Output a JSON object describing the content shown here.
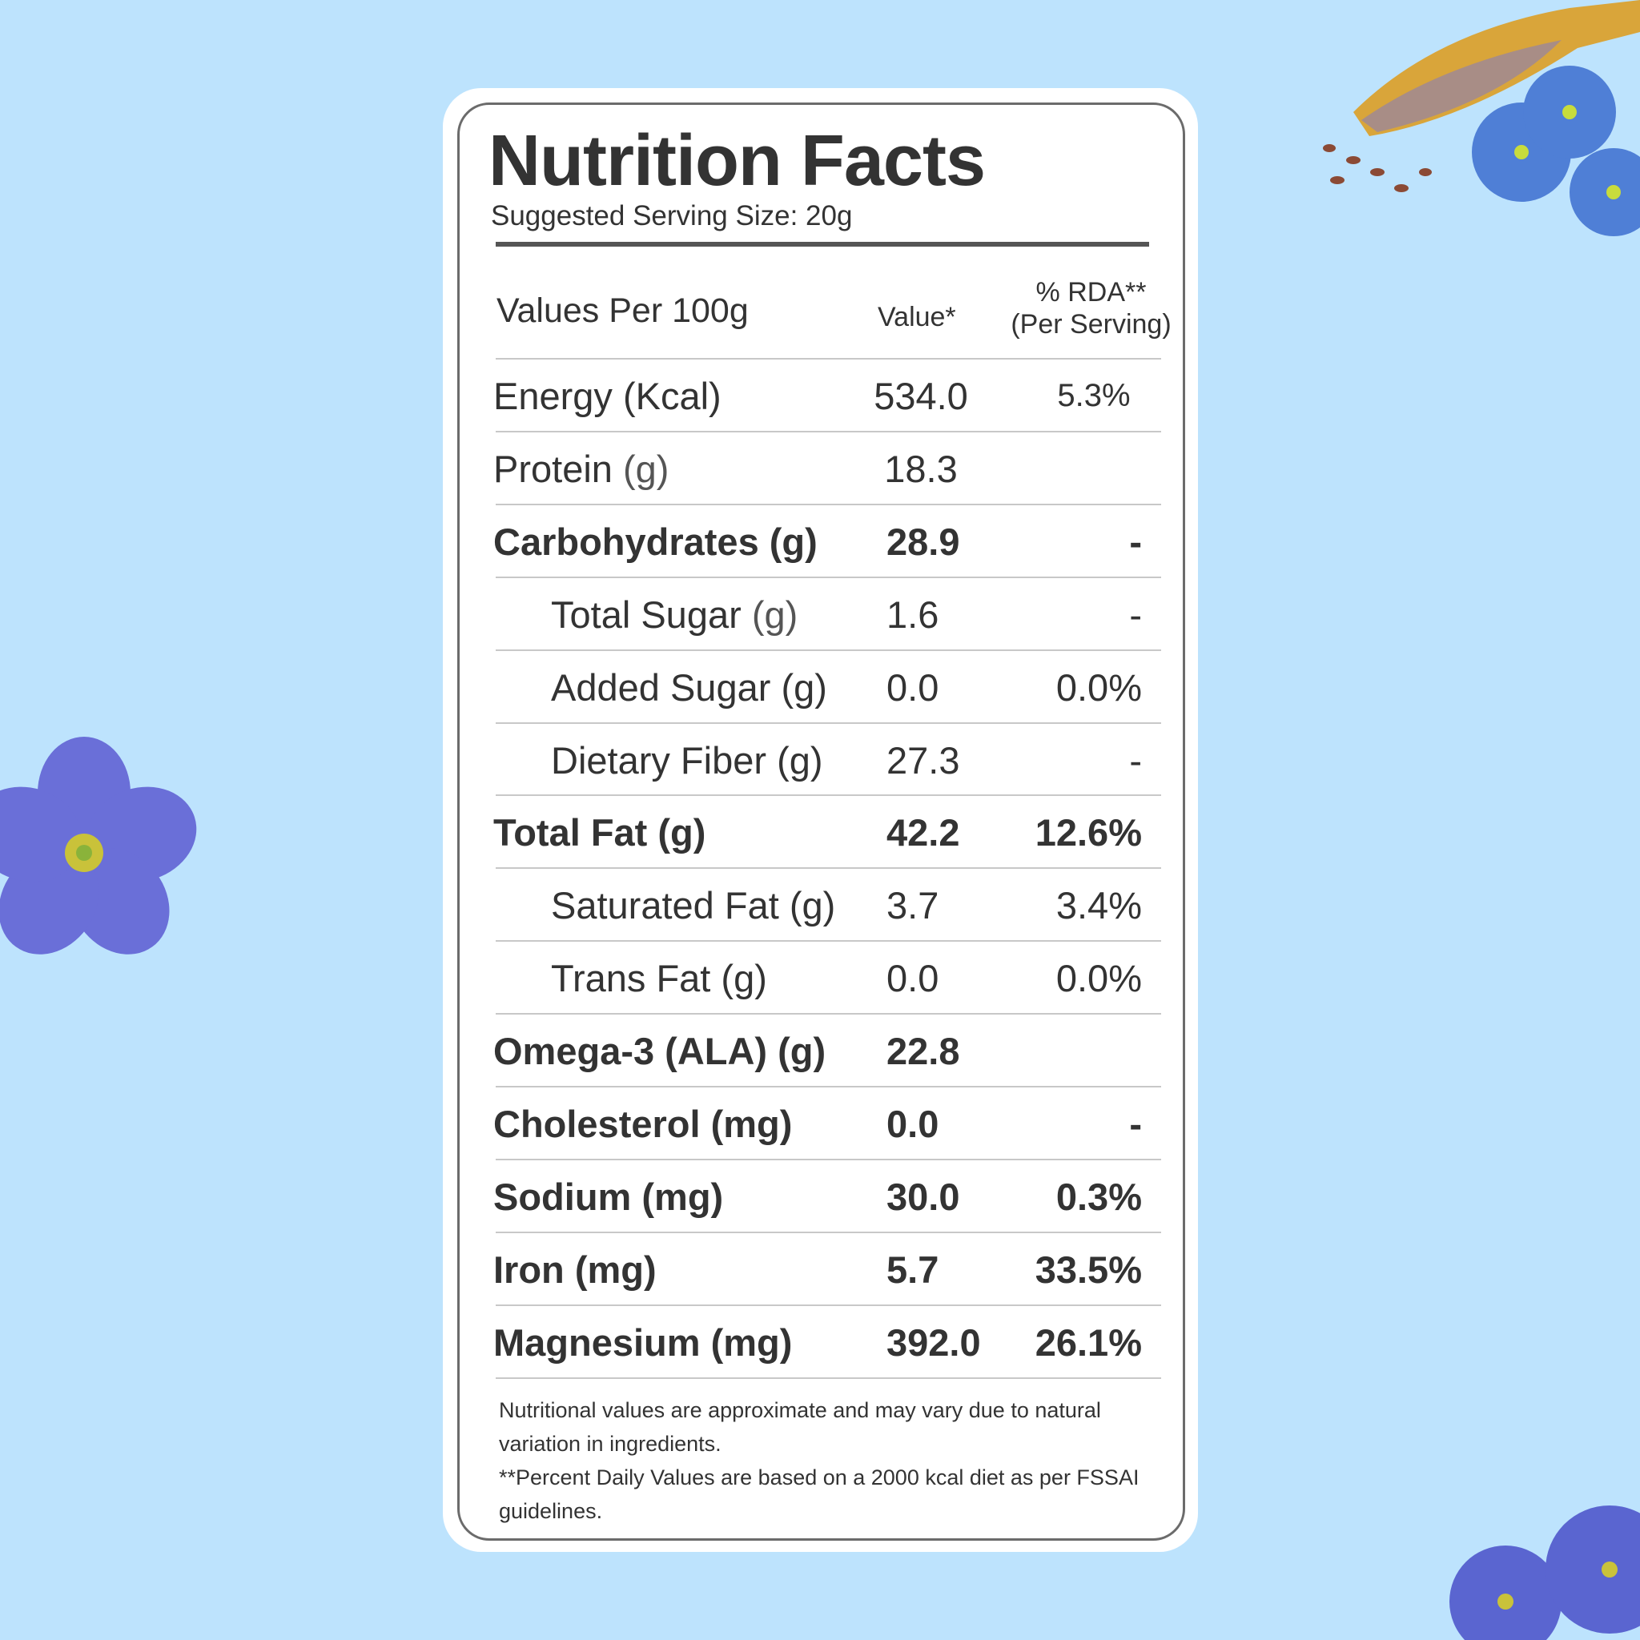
{
  "title": "Nutrition Facts",
  "serving_size": "Suggested Serving Size: 20g",
  "header": {
    "label": "Values Per 100g",
    "value": "Value*",
    "rda_line1": "% RDA**",
    "rda_line2": "(Per Serving)"
  },
  "rows": [
    {
      "name": "Energy (Kcal)",
      "unit": "",
      "value": "534.0",
      "rda": "5.3%",
      "bold": false,
      "indent": false,
      "center": true
    },
    {
      "name": "Protein",
      "unit": " (g)",
      "value": "18.3",
      "rda": "",
      "bold": false,
      "indent": false,
      "center": true
    },
    {
      "name": "Carbohydrates (g)",
      "unit": "",
      "value": "28.9",
      "rda": "-",
      "bold": true,
      "indent": false
    },
    {
      "name": "Total Sugar",
      "unit": " (g)",
      "value": "1.6",
      "rda": "-",
      "bold": false,
      "indent": true
    },
    {
      "name": "Added Sugar (g)",
      "unit": "",
      "value": "0.0",
      "rda": "0.0%",
      "bold": false,
      "indent": true
    },
    {
      "name": "Dietary Fiber (g)",
      "unit": "",
      "value": "27.3",
      "rda": "-",
      "bold": false,
      "indent": true
    },
    {
      "name": "Total Fat (g)",
      "unit": "",
      "value": "42.2",
      "rda": "12.6%",
      "bold": true,
      "indent": false
    },
    {
      "name": "Saturated Fat (g)",
      "unit": "",
      "value": "3.7",
      "rda": "3.4%",
      "bold": false,
      "indent": true
    },
    {
      "name": "Trans Fat (g)",
      "unit": "",
      "value": "0.0",
      "rda": "0.0%",
      "bold": false,
      "indent": true
    },
    {
      "name": "Omega-3 (ALA) (g)",
      "unit": "",
      "value": "22.8",
      "rda": "",
      "bold": true,
      "indent": false
    },
    {
      "name": "Cholesterol (mg)",
      "unit": "",
      "value": "0.0",
      "rda": "-",
      "bold": true,
      "indent": false
    },
    {
      "name": "Sodium (mg)",
      "unit": "",
      "value": "30.0",
      "rda": "0.3%",
      "bold": true,
      "indent": false
    },
    {
      "name": "Iron (mg)",
      "unit": "",
      "value": "5.7",
      "rda": "33.5%",
      "bold": true,
      "indent": false
    },
    {
      "name": "Magnesium (mg)",
      "unit": "",
      "value": "392.0",
      "rda": "26.1%",
      "bold": true,
      "indent": false
    }
  ],
  "footnotes": [
    "Nutritional values are approximate and may vary due to natural variation in ingredients.",
    "**Percent Daily Values are based on a 2000 kcal diet as per FSSAI guidelines."
  ],
  "colors": {
    "background": "#bde3fd",
    "text": "#333333",
    "flower": "#6a6fd8"
  },
  "decorations": [
    "flax-flower-icon",
    "flaxseed-scoop-icon"
  ]
}
